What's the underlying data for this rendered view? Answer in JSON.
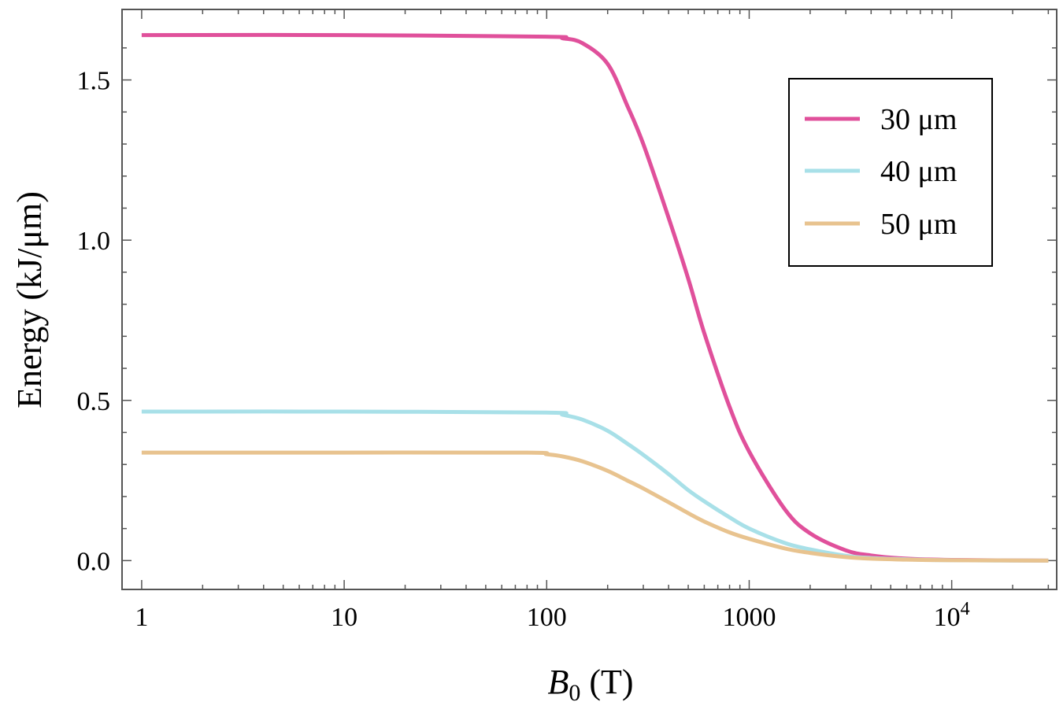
{
  "chart_data": {
    "type": "line",
    "title": "",
    "xlabel": {
      "main": "B",
      "sub": "0",
      "unit": " (T)"
    },
    "ylabel": "Energy (kJ/μm)",
    "xscale": "log",
    "xlim": [
      0.8,
      33000
    ],
    "ylim": [
      -0.09,
      1.72
    ],
    "xticks": [
      {
        "value": 1,
        "label": "1"
      },
      {
        "value": 10,
        "label": "10"
      },
      {
        "value": 100,
        "label": "100"
      },
      {
        "value": 1000,
        "label": "1000"
      },
      {
        "value": 10000,
        "label": "10",
        "sup": "4"
      }
    ],
    "yticks": [
      {
        "value": 0.0,
        "label": "0.0"
      },
      {
        "value": 0.5,
        "label": "0.5"
      },
      {
        "value": 1.0,
        "label": "1.0"
      },
      {
        "value": 1.5,
        "label": "1.5"
      }
    ],
    "legend_position": "top-right",
    "series": [
      {
        "name": "30 μm",
        "color": "#E0509B",
        "x": [
          1,
          10,
          100,
          120,
          150,
          200,
          250,
          300,
          400,
          500,
          600,
          800,
          1000,
          1500,
          2000,
          3000,
          4000,
          6000,
          10000,
          30000
        ],
        "y": [
          1.64,
          1.64,
          1.635,
          1.63,
          1.615,
          1.55,
          1.42,
          1.3,
          1.07,
          0.88,
          0.71,
          0.48,
          0.34,
          0.16,
          0.085,
          0.032,
          0.016,
          0.006,
          0.002,
          0.0
        ]
      },
      {
        "name": "40 μm",
        "color": "#A8E0E8",
        "x": [
          1,
          10,
          100,
          120,
          150,
          200,
          250,
          300,
          400,
          500,
          600,
          800,
          1000,
          1500,
          2000,
          3000,
          4000,
          6000,
          10000,
          30000
        ],
        "y": [
          0.465,
          0.465,
          0.462,
          0.455,
          0.44,
          0.405,
          0.365,
          0.33,
          0.27,
          0.22,
          0.185,
          0.135,
          0.1,
          0.055,
          0.035,
          0.015,
          0.008,
          0.004,
          0.001,
          0.0
        ]
      },
      {
        "name": "50 μm",
        "color": "#E8C38F",
        "x": [
          1,
          10,
          80,
          100,
          120,
          150,
          200,
          250,
          300,
          400,
          500,
          600,
          800,
          1000,
          1500,
          2000,
          3000,
          4000,
          6000,
          10000,
          30000
        ],
        "y": [
          0.337,
          0.337,
          0.337,
          0.332,
          0.325,
          0.31,
          0.28,
          0.25,
          0.225,
          0.182,
          0.148,
          0.122,
          0.088,
          0.068,
          0.038,
          0.024,
          0.011,
          0.006,
          0.003,
          0.001,
          0.0
        ]
      }
    ]
  }
}
